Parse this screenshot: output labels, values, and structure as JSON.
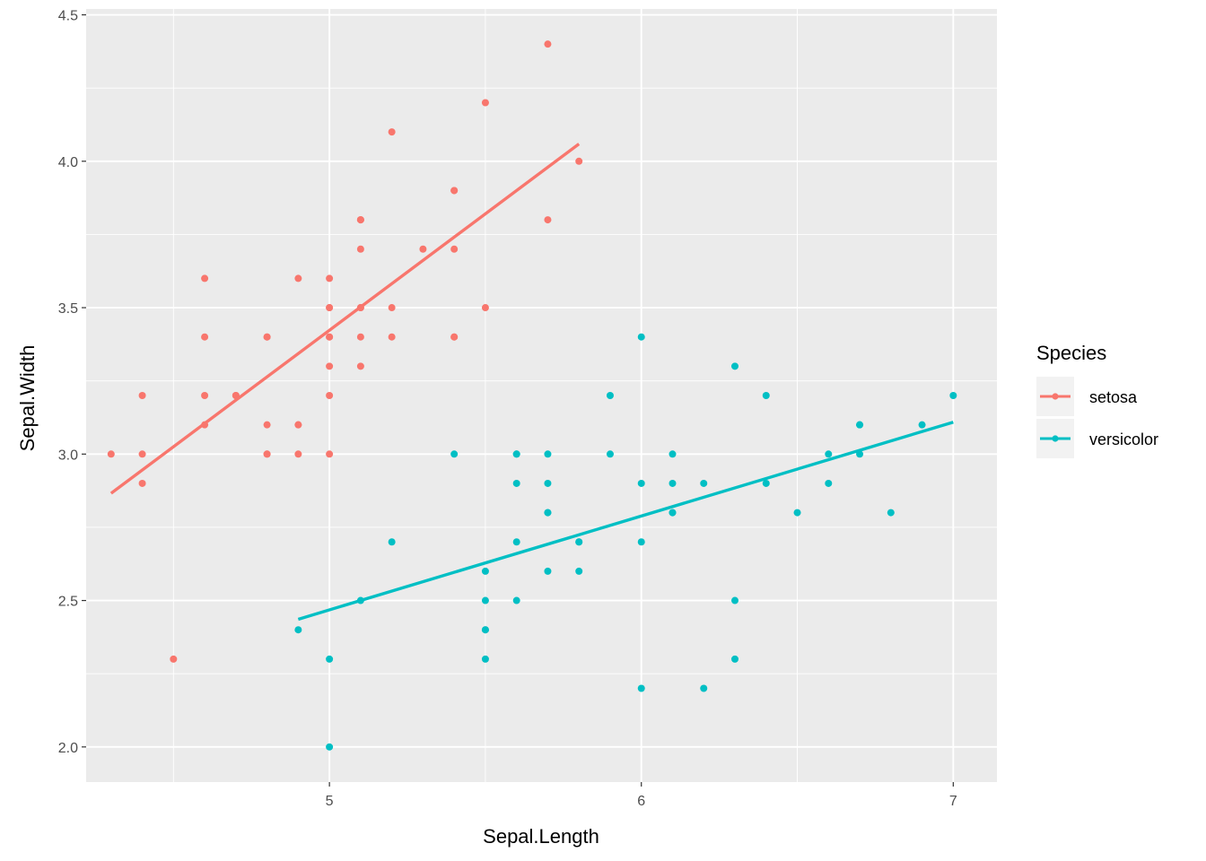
{
  "chart_data": {
    "type": "scatter",
    "xlabel": "Sepal.Length",
    "ylabel": "Sepal.Width",
    "xlim": [
      4.22,
      7.14
    ],
    "ylim": [
      1.88,
      4.52
    ],
    "x_ticks": [
      5,
      6,
      7
    ],
    "x_tick_labels": [
      "5",
      "6",
      "7"
    ],
    "y_ticks": [
      2.0,
      2.5,
      3.0,
      3.5,
      4.0,
      4.5
    ],
    "y_tick_labels": [
      "2.0",
      "2.5",
      "3.0",
      "3.5",
      "4.0",
      "4.5"
    ],
    "grid": true,
    "legend": {
      "title": "Species",
      "position": "right"
    },
    "series": [
      {
        "name": "setosa",
        "color": "#F8766D",
        "points": [
          [
            5.1,
            3.5
          ],
          [
            4.9,
            3.0
          ],
          [
            4.7,
            3.2
          ],
          [
            4.6,
            3.1
          ],
          [
            5.0,
            3.6
          ],
          [
            5.4,
            3.9
          ],
          [
            4.6,
            3.4
          ],
          [
            5.0,
            3.4
          ],
          [
            4.4,
            2.9
          ],
          [
            4.9,
            3.1
          ],
          [
            5.4,
            3.7
          ],
          [
            4.8,
            3.4
          ],
          [
            4.8,
            3.0
          ],
          [
            4.3,
            3.0
          ],
          [
            5.8,
            4.0
          ],
          [
            5.7,
            4.4
          ],
          [
            5.4,
            3.9
          ],
          [
            5.1,
            3.5
          ],
          [
            5.7,
            3.8
          ],
          [
            5.1,
            3.8
          ],
          [
            5.4,
            3.4
          ],
          [
            5.1,
            3.7
          ],
          [
            4.6,
            3.6
          ],
          [
            5.1,
            3.3
          ],
          [
            4.8,
            3.4
          ],
          [
            5.0,
            3.0
          ],
          [
            5.0,
            3.4
          ],
          [
            5.2,
            3.5
          ],
          [
            5.2,
            3.4
          ],
          [
            4.7,
            3.2
          ],
          [
            4.8,
            3.1
          ],
          [
            5.4,
            3.4
          ],
          [
            5.2,
            4.1
          ],
          [
            5.5,
            4.2
          ],
          [
            4.9,
            3.1
          ],
          [
            5.0,
            3.2
          ],
          [
            5.5,
            3.5
          ],
          [
            4.9,
            3.6
          ],
          [
            4.4,
            3.0
          ],
          [
            5.1,
            3.4
          ],
          [
            5.0,
            3.5
          ],
          [
            4.5,
            2.3
          ],
          [
            4.4,
            3.2
          ],
          [
            5.0,
            3.5
          ],
          [
            5.1,
            3.8
          ],
          [
            4.8,
            3.0
          ],
          [
            5.1,
            3.8
          ],
          [
            4.6,
            3.2
          ],
          [
            5.3,
            3.7
          ],
          [
            5.0,
            3.3
          ]
        ],
        "fit": {
          "x": [
            4.3,
            5.8
          ],
          "y": [
            2.866,
            4.059
          ]
        }
      },
      {
        "name": "versicolor",
        "color": "#00BFC4",
        "points": [
          [
            7.0,
            3.2
          ],
          [
            6.4,
            3.2
          ],
          [
            6.9,
            3.1
          ],
          [
            5.5,
            2.3
          ],
          [
            6.5,
            2.8
          ],
          [
            5.7,
            2.8
          ],
          [
            6.3,
            3.3
          ],
          [
            4.9,
            2.4
          ],
          [
            6.6,
            2.9
          ],
          [
            5.2,
            2.7
          ],
          [
            5.0,
            2.0
          ],
          [
            5.9,
            3.0
          ],
          [
            6.0,
            2.2
          ],
          [
            6.1,
            2.9
          ],
          [
            5.6,
            2.9
          ],
          [
            6.7,
            3.1
          ],
          [
            5.6,
            3.0
          ],
          [
            5.8,
            2.7
          ],
          [
            6.2,
            2.2
          ],
          [
            5.6,
            2.5
          ],
          [
            5.9,
            3.2
          ],
          [
            6.1,
            2.8
          ],
          [
            6.3,
            2.5
          ],
          [
            6.1,
            2.8
          ],
          [
            6.4,
            2.9
          ],
          [
            6.6,
            3.0
          ],
          [
            6.8,
            2.8
          ],
          [
            6.7,
            3.0
          ],
          [
            6.0,
            2.9
          ],
          [
            5.7,
            2.6
          ],
          [
            5.5,
            2.4
          ],
          [
            5.5,
            2.4
          ],
          [
            5.8,
            2.7
          ],
          [
            6.0,
            2.7
          ],
          [
            5.4,
            3.0
          ],
          [
            6.0,
            3.4
          ],
          [
            6.7,
            3.1
          ],
          [
            6.3,
            2.3
          ],
          [
            5.6,
            3.0
          ],
          [
            5.5,
            2.5
          ],
          [
            5.5,
            2.6
          ],
          [
            6.1,
            3.0
          ],
          [
            5.8,
            2.6
          ],
          [
            5.0,
            2.3
          ],
          [
            5.6,
            2.7
          ],
          [
            5.7,
            3.0
          ],
          [
            5.7,
            2.9
          ],
          [
            6.2,
            2.9
          ],
          [
            5.1,
            2.5
          ],
          [
            5.7,
            2.8
          ]
        ],
        "fit": {
          "x": [
            4.9,
            7.0
          ],
          "y": [
            2.436,
            3.109
          ]
        }
      }
    ]
  }
}
